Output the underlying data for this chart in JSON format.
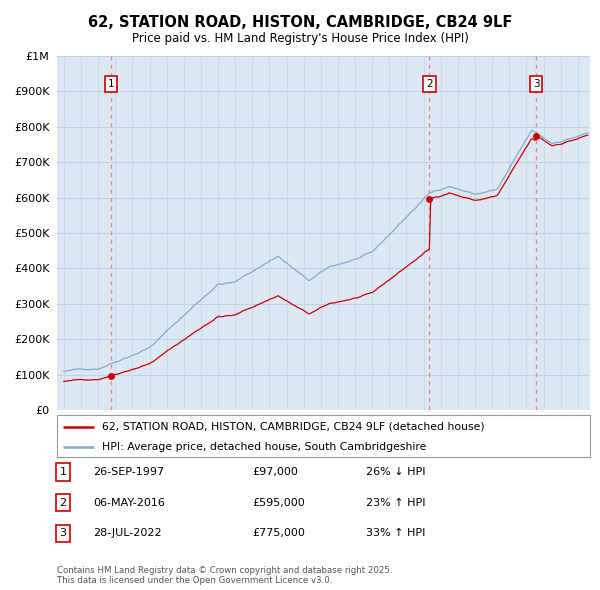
{
  "title": "62, STATION ROAD, HISTON, CAMBRIDGE, CB24 9LF",
  "subtitle": "Price paid vs. HM Land Registry's House Price Index (HPI)",
  "sale_labels": [
    "1",
    "2",
    "3"
  ],
  "sale_dates_year": [
    1997.74,
    2016.34,
    2022.57
  ],
  "sale_prices": [
    97000,
    595000,
    775000
  ],
  "legend_line1": "62, STATION ROAD, HISTON, CAMBRIDGE, CB24 9LF (detached house)",
  "legend_line2": "HPI: Average price, detached house, South Cambridgeshire",
  "table_rows": [
    {
      "num": "1",
      "date": "26-SEP-1997",
      "price": "£97,000",
      "hpi": "26% ↓ HPI"
    },
    {
      "num": "2",
      "date": "06-MAY-2016",
      "price": "£595,000",
      "hpi": "23% ↑ HPI"
    },
    {
      "num": "3",
      "date": "28-JUL-2022",
      "price": "£775,000",
      "hpi": "33% ↑ HPI"
    }
  ],
  "footer": "Contains HM Land Registry data © Crown copyright and database right 2025.\nThis data is licensed under the Open Government Licence v3.0.",
  "price_line_color": "#cc0000",
  "hpi_line_color": "#88aacc",
  "sale_dot_color": "#cc0000",
  "vline_color": "#ee8888",
  "background_color": "#ffffff",
  "chart_bg_color": "#dce9f5",
  "grid_color": "#c0d4e8",
  "label_box_color": "#cc0000"
}
